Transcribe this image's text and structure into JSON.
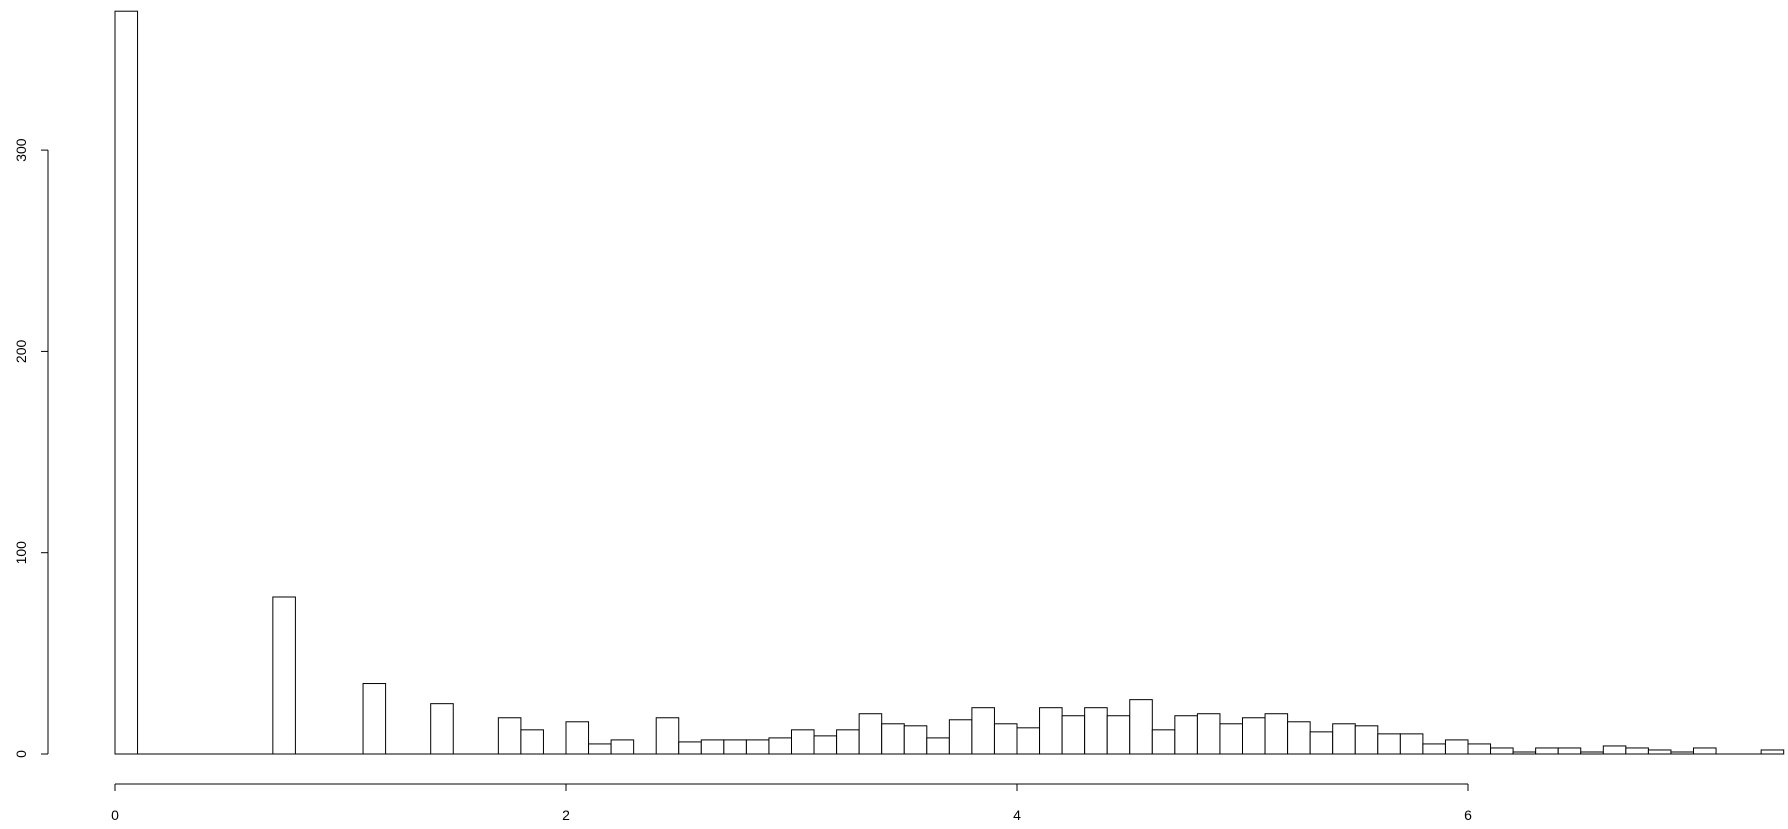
{
  "chart_data": {
    "type": "bar",
    "title": "",
    "xlabel": "",
    "ylabel": "",
    "bin_width": 0.1,
    "xlim": [
      0,
      7.4
    ],
    "ylim": [
      0,
      370
    ],
    "x_ticks": [
      0,
      2,
      4,
      6
    ],
    "x_tick_labels": [
      "0",
      "2",
      "4",
      "6"
    ],
    "y_ticks": [
      0,
      100,
      200,
      300
    ],
    "y_tick_labels": [
      "0",
      "100",
      "200",
      "300"
    ],
    "grid": false,
    "legend": "none",
    "bar_fill": "#ffffff",
    "bar_stroke": "#000000",
    "bins_start": [
      0.0,
      0.1,
      0.2,
      0.3,
      0.4,
      0.5,
      0.6,
      0.7,
      0.8,
      0.9,
      1.0,
      1.1,
      1.2,
      1.3,
      1.4,
      1.5,
      1.6,
      1.7,
      1.8,
      1.9,
      2.0,
      2.1,
      2.2,
      2.3,
      2.4,
      2.5,
      2.6,
      2.7,
      2.8,
      2.9,
      3.0,
      3.1,
      3.2,
      3.3,
      3.4,
      3.5,
      3.6,
      3.7,
      3.8,
      3.9,
      4.0,
      4.1,
      4.2,
      4.3,
      4.4,
      4.5,
      4.6,
      4.7,
      4.8,
      4.9,
      5.0,
      5.1,
      5.2,
      5.3,
      5.4,
      5.5,
      5.6,
      5.7,
      5.8,
      5.9,
      6.0,
      6.1,
      6.2,
      6.3,
      6.4,
      6.5,
      6.6,
      6.7,
      6.8,
      6.9,
      7.0,
      7.1,
      7.2,
      7.3
    ],
    "values": [
      369,
      0,
      0,
      0,
      0,
      0,
      0,
      78,
      0,
      0,
      0,
      35,
      0,
      0,
      25,
      0,
      0,
      18,
      12,
      0,
      16,
      5,
      7,
      0,
      18,
      6,
      7,
      7,
      7,
      8,
      12,
      9,
      12,
      20,
      15,
      14,
      8,
      17,
      23,
      15,
      13,
      23,
      19,
      23,
      19,
      27,
      12,
      19,
      20,
      15,
      18,
      20,
      16,
      11,
      15,
      14,
      10,
      10,
      5,
      7,
      5,
      3,
      1,
      3,
      3,
      1,
      4,
      3,
      2,
      1,
      3,
      0,
      0,
      2
    ]
  }
}
